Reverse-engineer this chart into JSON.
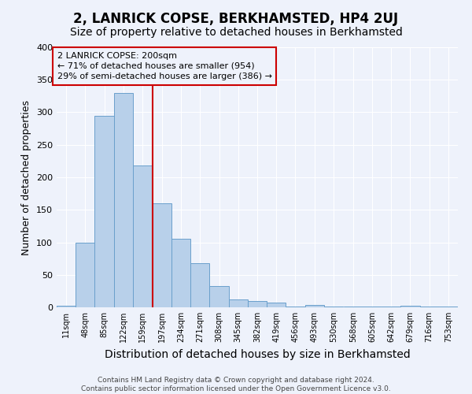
{
  "title": "2, LANRICK COPSE, BERKHAMSTED, HP4 2UJ",
  "subtitle": "Size of property relative to detached houses in Berkhamsted",
  "xlabel": "Distribution of detached houses by size in Berkhamsted",
  "ylabel": "Number of detached properties",
  "footer_line1": "Contains HM Land Registry data © Crown copyright and database right 2024.",
  "footer_line2": "Contains public sector information licensed under the Open Government Licence v3.0.",
  "bin_labels": [
    "11sqm",
    "48sqm",
    "85sqm",
    "122sqm",
    "159sqm",
    "197sqm",
    "234sqm",
    "271sqm",
    "308sqm",
    "345sqm",
    "382sqm",
    "419sqm",
    "456sqm",
    "493sqm",
    "530sqm",
    "568sqm",
    "605sqm",
    "642sqm",
    "679sqm",
    "716sqm",
    "753sqm"
  ],
  "bin_edges": [
    11,
    48,
    85,
    122,
    159,
    197,
    234,
    271,
    308,
    345,
    382,
    419,
    456,
    493,
    530,
    568,
    605,
    642,
    679,
    716,
    753
  ],
  "bar_heights": [
    2,
    100,
    295,
    330,
    218,
    160,
    105,
    68,
    33,
    12,
    10,
    7,
    1,
    4,
    1,
    1,
    1,
    1,
    2,
    1,
    1
  ],
  "bar_color": "#b8d0ea",
  "bar_edge_color": "#6aa0cc",
  "vline_x": 197,
  "vline_color": "#cc0000",
  "annotation_line1": "2 LANRICK COPSE: 200sqm",
  "annotation_line2": "← 71% of detached houses are smaller (954)",
  "annotation_line3": "29% of semi-detached houses are larger (386) →",
  "annotation_box_edgecolor": "#cc0000",
  "ylim": [
    0,
    400
  ],
  "yticks": [
    0,
    50,
    100,
    150,
    200,
    250,
    300,
    350,
    400
  ],
  "background_color": "#eef2fb",
  "grid_color": "#ffffff",
  "title_fontsize": 12,
  "subtitle_fontsize": 10,
  "ylabel_fontsize": 9,
  "xlabel_fontsize": 10,
  "annotation_fontsize": 8,
  "footer_fontsize": 6.5
}
